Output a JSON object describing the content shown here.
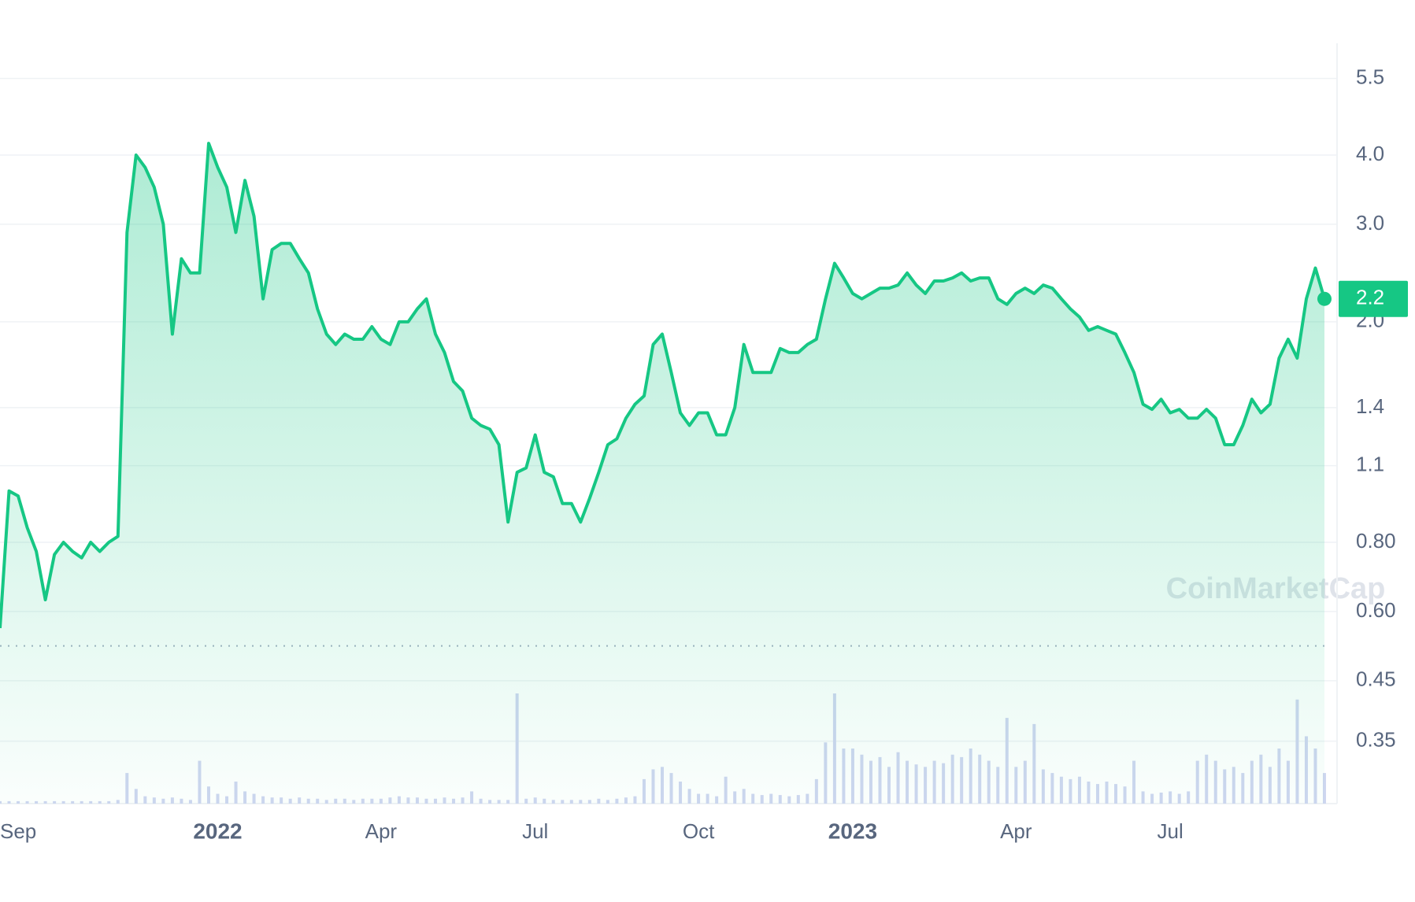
{
  "chart_data": {
    "type": "line",
    "log_scale": true,
    "grid": true,
    "ylim": [
      0.27,
      6.2
    ],
    "yticks": [
      5.5,
      {
        "value": 4,
        "label": "4.0"
      },
      {
        "value": 3,
        "label": "3.0"
      },
      {
        "value": 2,
        "label": "2.0"
      },
      1.4,
      1.1,
      {
        "value": 0.8,
        "label": "0.80"
      },
      {
        "value": 0.6,
        "label": "0.60"
      },
      0.45,
      0.35
    ],
    "reference_line": 0.52,
    "watermark": "CoinMarketCap",
    "categories": [
      null,
      null,
      "Sep",
      null,
      null,
      null,
      null,
      null,
      null,
      null,
      null,
      null,
      null,
      null,
      null,
      null,
      null,
      null,
      null,
      null,
      null,
      null,
      null,
      null,
      "2022",
      null,
      null,
      null,
      null,
      null,
      null,
      null,
      null,
      null,
      null,
      null,
      null,
      null,
      null,
      null,
      null,
      null,
      "Apr",
      null,
      null,
      null,
      null,
      null,
      null,
      null,
      null,
      null,
      null,
      null,
      null,
      null,
      null,
      null,
      null,
      "Jul",
      null,
      null,
      null,
      null,
      null,
      null,
      null,
      null,
      null,
      null,
      null,
      null,
      null,
      null,
      null,
      null,
      null,
      "Oct",
      null,
      null,
      null,
      null,
      null,
      null,
      null,
      null,
      null,
      null,
      null,
      null,
      null,
      null,
      null,
      null,
      "2023",
      null,
      null,
      null,
      null,
      null,
      null,
      null,
      null,
      null,
      null,
      null,
      null,
      null,
      null,
      null,
      null,
      null,
      "Apr",
      null,
      null,
      null,
      null,
      null,
      null,
      null,
      null,
      null,
      null,
      null,
      null,
      null,
      null,
      null,
      null,
      "Jul",
      null,
      null,
      null,
      null,
      null,
      null,
      null,
      null,
      null,
      null,
      null,
      null,
      null,
      null,
      null,
      null,
      null
    ],
    "series": [
      {
        "color": "#16c784",
        "values": [
          0.56,
          0.99,
          0.97,
          0.85,
          0.77,
          0.63,
          0.76,
          0.8,
          0.77,
          0.75,
          0.8,
          0.77,
          0.8,
          0.82,
          2.9,
          4.0,
          3.8,
          3.5,
          3.0,
          1.9,
          2.6,
          2.45,
          2.45,
          4.2,
          3.8,
          3.5,
          2.9,
          3.6,
          3.1,
          2.2,
          2.7,
          2.77,
          2.77,
          2.6,
          2.45,
          2.11,
          1.9,
          1.82,
          1.9,
          1.86,
          1.86,
          1.96,
          1.86,
          1.82,
          2.0,
          2.0,
          2.11,
          2.2,
          1.9,
          1.76,
          1.56,
          1.5,
          1.34,
          1.3,
          1.28,
          1.2,
          0.87,
          1.07,
          1.09,
          1.25,
          1.07,
          1.05,
          0.94,
          0.94,
          0.87,
          0.96,
          1.07,
          1.2,
          1.23,
          1.34,
          1.42,
          1.47,
          1.82,
          1.9,
          1.62,
          1.37,
          1.3,
          1.37,
          1.37,
          1.25,
          1.25,
          1.4,
          1.82,
          1.62,
          1.62,
          1.62,
          1.79,
          1.76,
          1.76,
          1.82,
          1.86,
          2.2,
          2.55,
          2.4,
          2.25,
          2.2,
          2.25,
          2.3,
          2.3,
          2.33,
          2.45,
          2.33,
          2.25,
          2.37,
          2.37,
          2.4,
          2.45,
          2.37,
          2.4,
          2.4,
          2.2,
          2.15,
          2.25,
          2.3,
          2.25,
          2.33,
          2.3,
          2.2,
          2.11,
          2.04,
          1.93,
          1.96,
          1.93,
          1.9,
          1.76,
          1.62,
          1.42,
          1.39,
          1.45,
          1.37,
          1.39,
          1.34,
          1.34,
          1.39,
          1.34,
          1.2,
          1.2,
          1.3,
          1.45,
          1.37,
          1.42,
          1.72,
          1.86,
          1.72,
          2.2,
          2.5,
          2.2
        ]
      }
    ],
    "volume": {
      "color": "#cfd6f0",
      "values": [
        2,
        2,
        2,
        2,
        2,
        2,
        2,
        2,
        2,
        2,
        2,
        2,
        2,
        3,
        25,
        12,
        6,
        5,
        4,
        5,
        4,
        3,
        35,
        14,
        8,
        6,
        18,
        10,
        8,
        6,
        5,
        5,
        4,
        5,
        4,
        4,
        3,
        4,
        4,
        3,
        4,
        4,
        4,
        5,
        6,
        5,
        5,
        4,
        4,
        5,
        4,
        5,
        10,
        4,
        3,
        3,
        3,
        90,
        4,
        5,
        4,
        3,
        3,
        3,
        3,
        3,
        4,
        3,
        4,
        5,
        6,
        20,
        28,
        30,
        25,
        18,
        12,
        8,
        8,
        6,
        22,
        10,
        12,
        8,
        7,
        8,
        7,
        6,
        7,
        8,
        20,
        50,
        90,
        45,
        45,
        40,
        35,
        38,
        30,
        42,
        35,
        32,
        30,
        35,
        33,
        40,
        38,
        45,
        40,
        35,
        30,
        70,
        30,
        35,
        65,
        28,
        25,
        22,
        20,
        22,
        18,
        16,
        18,
        16,
        14,
        35,
        10,
        8,
        9,
        10,
        8,
        10,
        35,
        40,
        35,
        28,
        30,
        25,
        35,
        40,
        30,
        45,
        35,
        85,
        55,
        45,
        25
      ]
    }
  }
}
